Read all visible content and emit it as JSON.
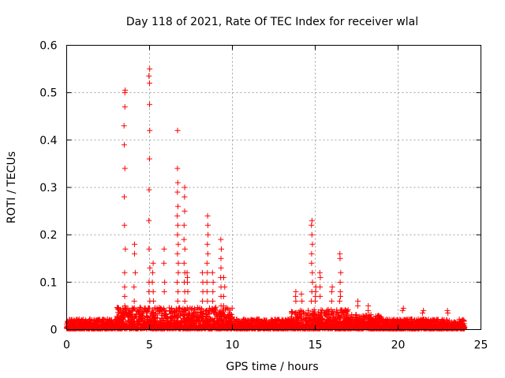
{
  "chart_data": {
    "type": "scatter",
    "title": "Day 118 of 2021, Rate Of TEC Index for receiver wlal",
    "xlabel": "GPS time / hours",
    "ylabel": "ROTI / TECUs",
    "xlim": [
      0,
      25
    ],
    "ylim": [
      0,
      0.6
    ],
    "xticks": [
      0,
      5,
      10,
      15,
      20,
      25
    ],
    "yticks": [
      0,
      0.1,
      0.2,
      0.3,
      0.4,
      0.5,
      0.6
    ],
    "xtick_labels": [
      "0",
      "5",
      "10",
      "15",
      "20",
      "25"
    ],
    "ytick_labels": [
      "0",
      "0.1",
      "0.2",
      "0.3",
      "0.4",
      "0.5",
      "0.6"
    ],
    "grid": true,
    "marker": "plus",
    "color": "#ff0000",
    "baseline_range": [
      0,
      24
    ],
    "spikes": [
      {
        "x": 3.5,
        "values": [
          0.505,
          0.5,
          0.47,
          0.43,
          0.39,
          0.34,
          0.28,
          0.22,
          0.17,
          0.12,
          0.09,
          0.07,
          0.05
        ]
      },
      {
        "x": 4.1,
        "values": [
          0.18,
          0.16,
          0.12,
          0.09,
          0.06
        ]
      },
      {
        "x": 5.0,
        "values": [
          0.55,
          0.535,
          0.52,
          0.475,
          0.42,
          0.36,
          0.295,
          0.23,
          0.17,
          0.13,
          0.1,
          0.08,
          0.06
        ]
      },
      {
        "x": 5.2,
        "values": [
          0.14,
          0.12,
          0.1,
          0.08,
          0.06
        ]
      },
      {
        "x": 5.9,
        "values": [
          0.17,
          0.14,
          0.1,
          0.08
        ]
      },
      {
        "x": 6.7,
        "values": [
          0.42,
          0.34,
          0.31,
          0.29,
          0.26,
          0.24,
          0.22,
          0.2,
          0.18,
          0.16,
          0.14,
          0.12,
          0.1,
          0.08,
          0.06
        ]
      },
      {
        "x": 7.1,
        "values": [
          0.3,
          0.28,
          0.25,
          0.22,
          0.19,
          0.17,
          0.14,
          0.12,
          0.1,
          0.08,
          0.06
        ]
      },
      {
        "x": 7.3,
        "values": [
          0.12,
          0.11,
          0.1,
          0.08
        ]
      },
      {
        "x": 8.2,
        "values": [
          0.12,
          0.1,
          0.08,
          0.06
        ]
      },
      {
        "x": 8.5,
        "values": [
          0.24,
          0.22,
          0.2,
          0.18,
          0.16,
          0.14,
          0.12,
          0.1,
          0.08,
          0.06
        ]
      },
      {
        "x": 8.8,
        "values": [
          0.12,
          0.1,
          0.08,
          0.06
        ]
      },
      {
        "x": 9.3,
        "values": [
          0.19,
          0.17,
          0.15,
          0.13,
          0.11,
          0.09,
          0.07,
          0.05
        ]
      },
      {
        "x": 9.5,
        "values": [
          0.11,
          0.09,
          0.07,
          0.05
        ]
      },
      {
        "x": 13.8,
        "values": [
          0.08,
          0.07,
          0.06
        ]
      },
      {
        "x": 14.2,
        "values": [
          0.075,
          0.06
        ]
      },
      {
        "x": 14.8,
        "values": [
          0.23,
          0.22,
          0.2,
          0.18,
          0.16,
          0.14,
          0.12,
          0.1,
          0.08,
          0.06
        ]
      },
      {
        "x": 15.0,
        "values": [
          0.09,
          0.08,
          0.07,
          0.06
        ]
      },
      {
        "x": 15.3,
        "values": [
          0.12,
          0.11,
          0.09,
          0.07
        ]
      },
      {
        "x": 16.0,
        "values": [
          0.09,
          0.08,
          0.06
        ]
      },
      {
        "x": 16.5,
        "values": [
          0.16,
          0.15,
          0.12,
          0.1,
          0.08,
          0.07,
          0.06
        ]
      },
      {
        "x": 17.6,
        "values": [
          0.06,
          0.05
        ]
      },
      {
        "x": 18.2,
        "values": [
          0.05,
          0.04
        ]
      },
      {
        "x": 20.3,
        "values": [
          0.045,
          0.04
        ]
      },
      {
        "x": 21.5,
        "values": [
          0.04,
          0.035
        ]
      },
      {
        "x": 23.0,
        "values": [
          0.04,
          0.035
        ]
      }
    ]
  }
}
